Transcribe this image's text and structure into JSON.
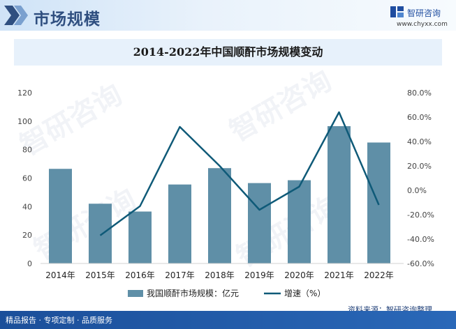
{
  "header": {
    "section_title": "市场规模",
    "brand_name": "智研咨询",
    "brand_url": "www.chyxx.com"
  },
  "colors": {
    "bar": "#5f8fa7",
    "line": "#0f5a78",
    "header": "#2f4f80",
    "footer": "#1b4f9a"
  },
  "chart_data": {
    "type": "bar",
    "title": "2014-2022年中国顺酐市场规模变动",
    "categories": [
      "2014年",
      "2015年",
      "2016年",
      "2017年",
      "2018年",
      "2019年",
      "2020年",
      "2021年",
      "2022年"
    ],
    "series": [
      {
        "name": "我国顺酐市场规模：亿元",
        "type": "bar",
        "axis": "left",
        "values": [
          66.5,
          42,
          36.5,
          55.5,
          67,
          56.5,
          58.5,
          96.5,
          85
        ]
      },
      {
        "name": "增速（%）",
        "type": "line",
        "axis": "right",
        "values": [
          null,
          -37,
          -13,
          52,
          20,
          -16,
          3,
          64,
          -12
        ]
      }
    ],
    "ylim_left": [
      0,
      120
    ],
    "yticks_left": [
      "0",
      "20",
      "40",
      "60",
      "80",
      "100",
      "120"
    ],
    "ylim_right": [
      -60,
      80
    ],
    "yticks_right": [
      "-60.0%",
      "-40.0%",
      "-20.0%",
      "0.0%",
      "20.0%",
      "40.0%",
      "60.0%",
      "80.0%"
    ],
    "legend": "bottom",
    "grid": false
  },
  "footer": {
    "left_text": "精品报告 · 专项定制 · 品质服务",
    "source": "资料来源：智研咨询整理"
  }
}
